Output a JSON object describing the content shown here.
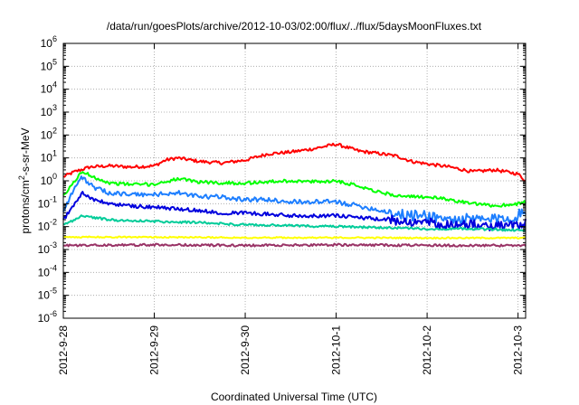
{
  "chart_data": {
    "type": "line",
    "title": "/data/run/goesPlots/archive/2012-10-03/02:00/flux/../flux/5daysMoonFluxes.txt",
    "xlabel": "Coordinated Universal Time (UTC)",
    "ylabel": "protons/cm2-s-sr-MeV",
    "ylabel_parts": {
      "pre": "protons/cm",
      "sup": "2",
      "post": "-s-sr-MeV"
    },
    "yscale": "log",
    "ylim": [
      1e-06,
      1000000.0
    ],
    "xlim": [
      "2012-9-28",
      "2012-10-3 02:00"
    ],
    "x_tick_labels": [
      "2012-9-28",
      "2012-9-29",
      "2012-9-30",
      "2012-10-1",
      "2012-10-2",
      "2012-10-3"
    ],
    "y_ticks": [
      {
        "base": "10",
        "exp": "6"
      },
      {
        "base": "10",
        "exp": "5"
      },
      {
        "base": "10",
        "exp": "4"
      },
      {
        "base": "10",
        "exp": "3"
      },
      {
        "base": "10",
        "exp": "2"
      },
      {
        "base": "10",
        "exp": "1"
      },
      {
        "base": "10",
        "exp": "0"
      },
      {
        "base": "10",
        "exp": "-1"
      },
      {
        "base": "10",
        "exp": "-2"
      },
      {
        "base": "10",
        "exp": "-3"
      },
      {
        "base": "10",
        "exp": "-4"
      },
      {
        "base": "10",
        "exp": "-5"
      },
      {
        "base": "10",
        "exp": "-6"
      }
    ],
    "grid": true,
    "legend": "none",
    "series": [
      {
        "color": "#ff0000",
        "points": [
          [
            "2012-9-28 00:00",
            1.5
          ],
          [
            "2012-9-28 03:00",
            2.5
          ],
          [
            "2012-9-28 07:00",
            4.0
          ],
          [
            "2012-9-28 12:00",
            4.5
          ],
          [
            "2012-9-28 18:00",
            4.0
          ],
          [
            "2012-9-29 00:00",
            4.5
          ],
          [
            "2012-9-29 03:00",
            8.0
          ],
          [
            "2012-9-29 06:00",
            10
          ],
          [
            "2012-9-29 12:00",
            7.0
          ],
          [
            "2012-9-29 18:00",
            6.0
          ],
          [
            "2012-9-30 00:00",
            8.0
          ],
          [
            "2012-9-30 06:00",
            15
          ],
          [
            "2012-9-30 12:00",
            18
          ],
          [
            "2012-9-30 18:00",
            25
          ],
          [
            "2012-10-1 00:00",
            40
          ],
          [
            "2012-10-1 06:00",
            20
          ],
          [
            "2012-10-1 12:00",
            15
          ],
          [
            "2012-10-1 16:00",
            12
          ],
          [
            "2012-10-1 20:00",
            7.0
          ],
          [
            "2012-10-2 00:00",
            5.5
          ],
          [
            "2012-10-2 06:00",
            4.0
          ],
          [
            "2012-10-2 12:00",
            2.5
          ],
          [
            "2012-10-2 18:00",
            3.0
          ],
          [
            "2012-10-3 00:00",
            2.0
          ],
          [
            "2012-10-3 02:00",
            1.0
          ]
        ]
      },
      {
        "color": "#00ff00",
        "points": [
          [
            "2012-9-28 00:00",
            0.2
          ],
          [
            "2012-9-28 03:00",
            1.0
          ],
          [
            "2012-9-28 05:00",
            2.5
          ],
          [
            "2012-9-28 08:00",
            1.5
          ],
          [
            "2012-9-28 12:00",
            0.8
          ],
          [
            "2012-9-28 18:00",
            0.7
          ],
          [
            "2012-9-29 00:00",
            0.7
          ],
          [
            "2012-9-29 06:00",
            1.2
          ],
          [
            "2012-9-29 12:00",
            0.9
          ],
          [
            "2012-9-29 18:00",
            0.8
          ],
          [
            "2012-9-30 00:00",
            0.8
          ],
          [
            "2012-9-30 06:00",
            0.9
          ],
          [
            "2012-9-30 12:00",
            1.0
          ],
          [
            "2012-9-30 18:00",
            0.9
          ],
          [
            "2012-10-1 00:00",
            1.0
          ],
          [
            "2012-10-1 06:00",
            0.6
          ],
          [
            "2012-10-1 12:00",
            0.3
          ],
          [
            "2012-10-1 18:00",
            0.2
          ],
          [
            "2012-10-2 00:00",
            0.2
          ],
          [
            "2012-10-2 06:00",
            0.15
          ],
          [
            "2012-10-2 12:00",
            0.1
          ],
          [
            "2012-10-2 18:00",
            0.08
          ],
          [
            "2012-10-3 00:00",
            0.1
          ],
          [
            "2012-10-3 02:00",
            0.12
          ]
        ]
      },
      {
        "color": "#1e7fff",
        "points": [
          [
            "2012-9-28 00:00",
            0.05
          ],
          [
            "2012-9-28 03:00",
            0.5
          ],
          [
            "2012-9-28 05:00",
            1.5
          ],
          [
            "2012-9-28 08:00",
            0.5
          ],
          [
            "2012-9-28 12:00",
            0.3
          ],
          [
            "2012-9-28 18:00",
            0.25
          ],
          [
            "2012-9-29 00:00",
            0.25
          ],
          [
            "2012-9-29 06:00",
            0.3
          ],
          [
            "2012-9-29 12:00",
            0.2
          ],
          [
            "2012-9-29 18:00",
            0.2
          ],
          [
            "2012-9-30 00:00",
            0.15
          ],
          [
            "2012-9-30 06:00",
            0.15
          ],
          [
            "2012-9-30 12:00",
            0.12
          ],
          [
            "2012-9-30 18:00",
            0.12
          ],
          [
            "2012-10-1 00:00",
            0.12
          ],
          [
            "2012-10-1 06:00",
            0.08
          ],
          [
            "2012-10-1 12:00",
            0.05
          ],
          [
            "2012-10-1 18:00",
            0.03
          ],
          [
            "2012-10-2 00:00",
            0.03
          ],
          [
            "2012-10-2 06:00",
            0.02
          ],
          [
            "2012-10-2 12:00",
            0.02
          ],
          [
            "2012-10-2 18:00",
            0.02
          ],
          [
            "2012-10-3 00:00",
            0.03
          ],
          [
            "2012-10-3 02:00",
            0.04
          ]
        ]
      },
      {
        "color": "#0000dd",
        "points": [
          [
            "2012-9-28 00:00",
            0.02
          ],
          [
            "2012-9-28 03:00",
            0.1
          ],
          [
            "2012-9-28 05:00",
            0.3
          ],
          [
            "2012-9-28 08:00",
            0.15
          ],
          [
            "2012-9-28 12:00",
            0.1
          ],
          [
            "2012-9-28 18:00",
            0.08
          ],
          [
            "2012-9-29 00:00",
            0.07
          ],
          [
            "2012-9-29 06:00",
            0.06
          ],
          [
            "2012-9-29 12:00",
            0.05
          ],
          [
            "2012-9-29 18:00",
            0.04
          ],
          [
            "2012-9-30 00:00",
            0.04
          ],
          [
            "2012-9-30 06:00",
            0.035
          ],
          [
            "2012-9-30 12:00",
            0.03
          ],
          [
            "2012-9-30 18:00",
            0.03
          ],
          [
            "2012-10-1 00:00",
            0.03
          ],
          [
            "2012-10-1 06:00",
            0.025
          ],
          [
            "2012-10-1 12:00",
            0.02
          ],
          [
            "2012-10-1 18:00",
            0.018
          ],
          [
            "2012-10-2 00:00",
            0.015
          ],
          [
            "2012-10-2 06:00",
            0.012
          ],
          [
            "2012-10-2 12:00",
            0.012
          ],
          [
            "2012-10-2 18:00",
            0.01
          ],
          [
            "2012-10-3 00:00",
            0.012
          ],
          [
            "2012-10-3 02:00",
            0.015
          ]
        ]
      },
      {
        "color": "#00cc99",
        "points": [
          [
            "2012-9-28 00:00",
            0.012
          ],
          [
            "2012-9-28 03:00",
            0.02
          ],
          [
            "2012-9-28 05:00",
            0.03
          ],
          [
            "2012-9-28 08:00",
            0.025
          ],
          [
            "2012-9-28 12:00",
            0.02
          ],
          [
            "2012-9-28 18:00",
            0.018
          ],
          [
            "2012-9-29 00:00",
            0.017
          ],
          [
            "2012-9-29 12:00",
            0.015
          ],
          [
            "2012-9-30 00:00",
            0.012
          ],
          [
            "2012-9-30 12:00",
            0.011
          ],
          [
            "2012-10-1 00:00",
            0.01
          ],
          [
            "2012-10-1 12:00",
            0.009
          ],
          [
            "2012-10-2 00:00",
            0.008
          ],
          [
            "2012-10-2 12:00",
            0.008
          ],
          [
            "2012-10-3 00:00",
            0.007
          ],
          [
            "2012-10-3 02:00",
            0.007
          ]
        ]
      },
      {
        "color": "#ffff00",
        "points": [
          [
            "2012-9-28 00:00",
            0.0035
          ],
          [
            "2012-9-29 00:00",
            0.0035
          ],
          [
            "2012-9-30 00:00",
            0.0033
          ],
          [
            "2012-10-1 00:00",
            0.0033
          ],
          [
            "2012-10-2 00:00",
            0.0032
          ],
          [
            "2012-10-3 02:00",
            0.0032
          ]
        ]
      },
      {
        "color": "#993366",
        "points": [
          [
            "2012-9-28 00:00",
            0.0015
          ],
          [
            "2012-9-29 00:00",
            0.0016
          ],
          [
            "2012-9-30 00:00",
            0.0015
          ],
          [
            "2012-10-1 00:00",
            0.0016
          ],
          [
            "2012-10-2 00:00",
            0.0015
          ],
          [
            "2012-10-3 02:00",
            0.0015
          ]
        ]
      }
    ]
  }
}
